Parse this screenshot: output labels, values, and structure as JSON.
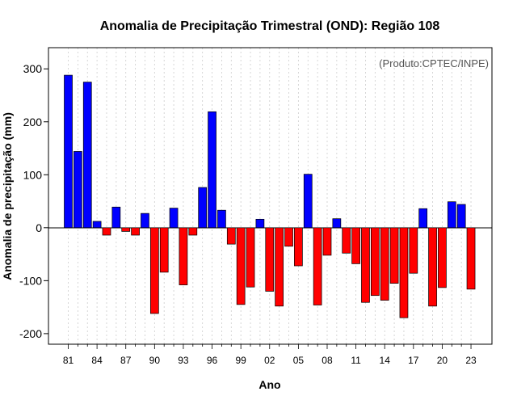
{
  "chart_data": {
    "type": "bar",
    "title": "Anomalia de Precipitação Trimestral (OND): Região 108",
    "xlabel": "Ano",
    "ylabel": "Anomalia de precipitação (mm)",
    "credit": "(Produto:CPTEC/INPE)",
    "ylim": [
      -220,
      340
    ],
    "yticks": [
      -200,
      -100,
      0,
      100,
      200,
      300
    ],
    "x_tick_labels": [
      "81",
      "84",
      "87",
      "90",
      "93",
      "96",
      "99",
      "02",
      "05",
      "08",
      "11",
      "14",
      "17",
      "20",
      "23"
    ],
    "categories": [
      "1981",
      "1982",
      "1983",
      "1984",
      "1985",
      "1986",
      "1987",
      "1988",
      "1989",
      "1990",
      "1991",
      "1992",
      "1993",
      "1994",
      "1995",
      "1996",
      "1997",
      "1998",
      "1999",
      "2000",
      "2001",
      "2002",
      "2003",
      "2004",
      "2005",
      "2006",
      "2007",
      "2008",
      "2009",
      "2010",
      "2011",
      "2012",
      "2013",
      "2014",
      "2015",
      "2016",
      "2017",
      "2018",
      "2019",
      "2020",
      "2021",
      "2022",
      "2023"
    ],
    "values": [
      288,
      144,
      275,
      12,
      -14,
      39,
      -7,
      -14,
      27,
      -162,
      -84,
      37,
      -108,
      -14,
      76,
      219,
      33,
      -31,
      -145,
      -112,
      16,
      -120,
      -148,
      -35,
      -72,
      101,
      -146,
      -52,
      17,
      -48,
      -68,
      -141,
      -128,
      -137,
      -105,
      -170,
      -86,
      36,
      -148,
      -113,
      49,
      44,
      -116
    ],
    "grid": "vertical dotted",
    "colors": {
      "positive": "#0000ff",
      "negative": "#ff0000",
      "grid": "#cccccc"
    }
  }
}
